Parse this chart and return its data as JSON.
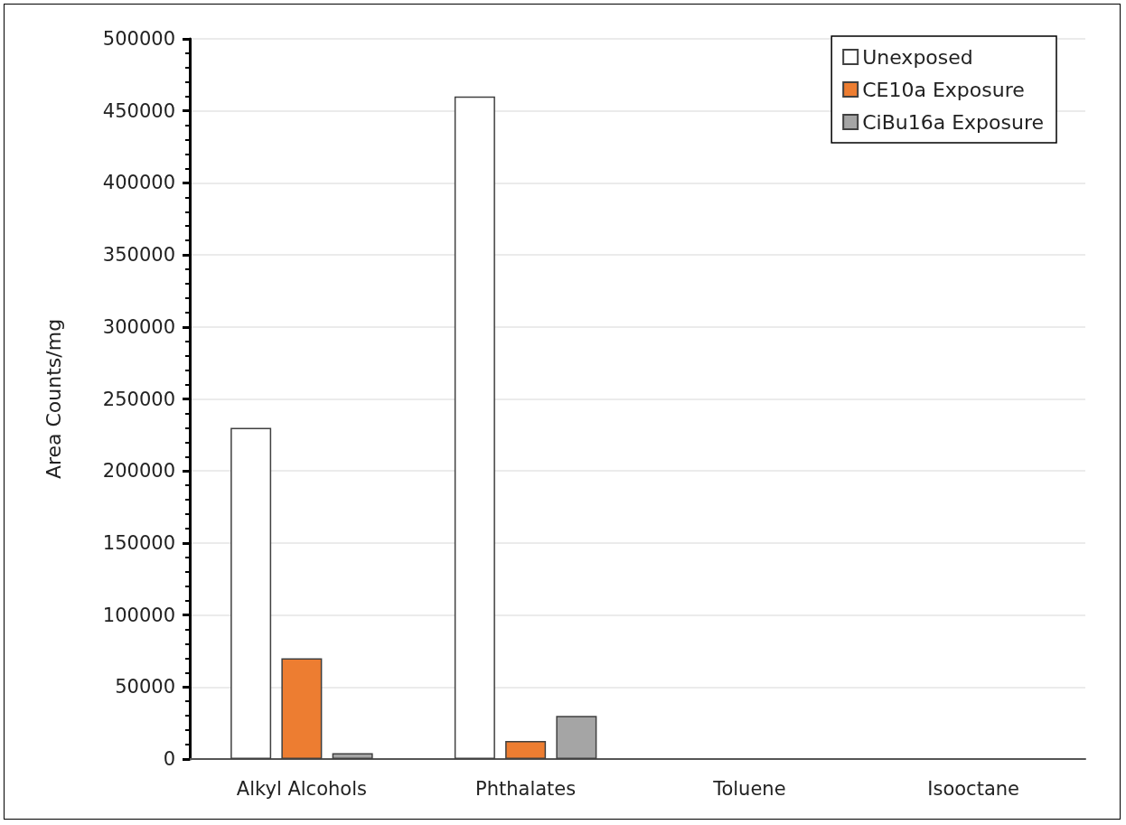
{
  "chart_data": {
    "type": "bar",
    "ylabel": "Area Counts/mg",
    "categories": [
      "Alkyl Alcohols",
      "Phthalates",
      "Toluene",
      "Isooctane"
    ],
    "series": [
      {
        "name": "Unexposed",
        "color": "#ffffff",
        "values": [
          230000,
          460000,
          0,
          0
        ]
      },
      {
        "name": "CE10a Exposure",
        "color": "#ed7d31",
        "values": [
          70000,
          12500,
          0,
          0
        ]
      },
      {
        "name": "CiBu16a Exposure",
        "color": "#a5a5a5",
        "values": [
          4000,
          30000,
          0,
          0
        ]
      }
    ],
    "ylim": [
      0,
      500000
    ],
    "yticks": [
      0,
      50000,
      100000,
      150000,
      200000,
      250000,
      300000,
      350000,
      400000,
      450000,
      500000
    ],
    "grid": "y",
    "legend": "top right"
  }
}
